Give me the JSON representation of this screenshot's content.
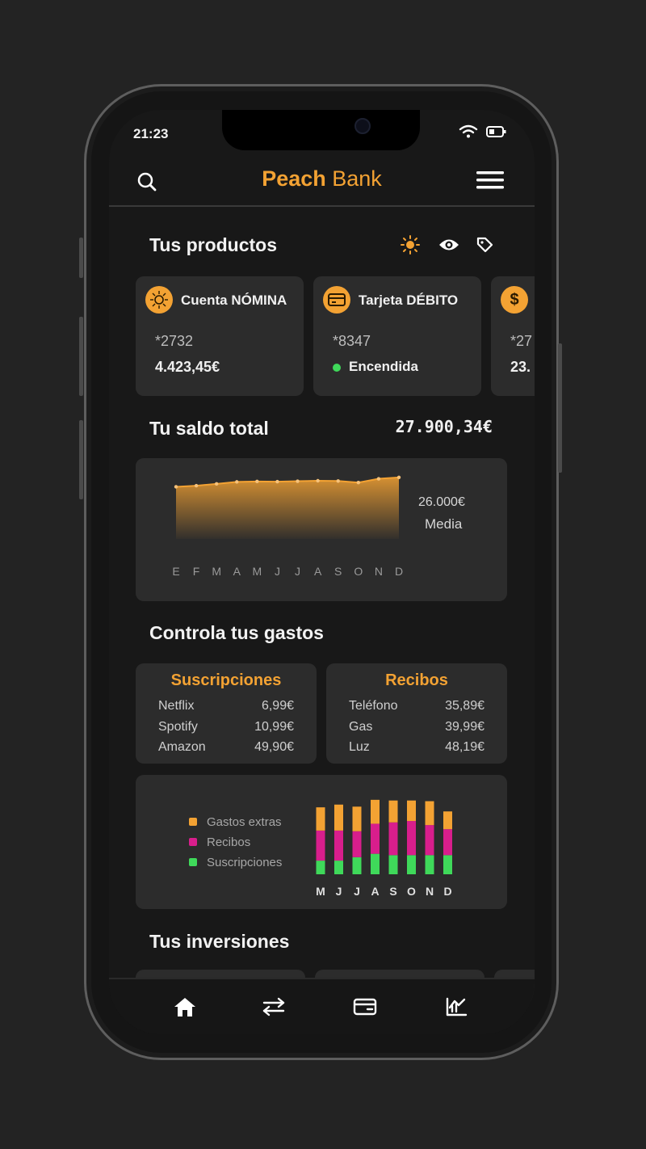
{
  "status": {
    "time": "21:23"
  },
  "header": {
    "logo_bold": "Peach",
    "logo_light": " Bank"
  },
  "products": {
    "title": "Tus productos",
    "items": [
      {
        "name": "Cuenta NÓMINA",
        "number": "*2732",
        "value": "4.423,45€",
        "icon": "sun-coin-icon"
      },
      {
        "name": "Tarjeta DÉBITO",
        "number": "*8347",
        "value": "Encendida",
        "icon": "card-icon"
      },
      {
        "name": "",
        "number": "*27",
        "value": "23.",
        "icon": "dollar-icon"
      }
    ]
  },
  "balance": {
    "title": "Tu saldo total",
    "total": "27.900,34€",
    "average_value": "26.000€",
    "average_label": "Media"
  },
  "chart_data": [
    {
      "type": "area",
      "categories": [
        "E",
        "F",
        "M",
        "A",
        "M",
        "J",
        "J",
        "A",
        "S",
        "O",
        "N",
        "D"
      ],
      "values": [
        23400,
        23900,
        24700,
        25600,
        25800,
        25700,
        25900,
        26100,
        26000,
        25300,
        27000,
        27600
      ],
      "ylim": [
        0,
        29000
      ]
    },
    {
      "type": "bar",
      "stacked": true,
      "categories": [
        "M",
        "J",
        "J",
        "A",
        "S",
        "O",
        "N",
        "D"
      ],
      "series": [
        {
          "name": "Suscripciones",
          "color": "#3fd95a",
          "values": [
            20,
            20,
            25,
            30,
            28,
            28,
            28,
            28
          ]
        },
        {
          "name": "Recibos",
          "color": "#d81e8c",
          "values": [
            44,
            44,
            38,
            44,
            48,
            50,
            44,
            38
          ]
        },
        {
          "name": "Gastos extras",
          "color": "#f3a233",
          "values": [
            34,
            38,
            36,
            35,
            32,
            30,
            35,
            26
          ]
        }
      ],
      "ylim": [
        0,
        110
      ]
    }
  ],
  "expenses": {
    "title": "Controla tus gastos",
    "subscriptions": {
      "title": "Suscripciones",
      "rows": [
        {
          "label": "Netflix",
          "value": "6,99€"
        },
        {
          "label": "Spotify",
          "value": "10,99€"
        },
        {
          "label": "Amazon",
          "value": "49,90€"
        }
      ]
    },
    "receipts": {
      "title": "Recibos",
      "rows": [
        {
          "label": "Teléfono",
          "value": "35,89€"
        },
        {
          "label": "Gas",
          "value": "39,99€"
        },
        {
          "label": "Luz",
          "value": "48,19€"
        }
      ]
    },
    "legend": [
      "Gastos extras",
      "Recibos",
      "Suscripciones"
    ]
  },
  "investments": {
    "title": "Tus inversiones"
  },
  "colors": {
    "accent": "#f3a233",
    "green": "#3fd95a",
    "magenta": "#d81e8c"
  }
}
